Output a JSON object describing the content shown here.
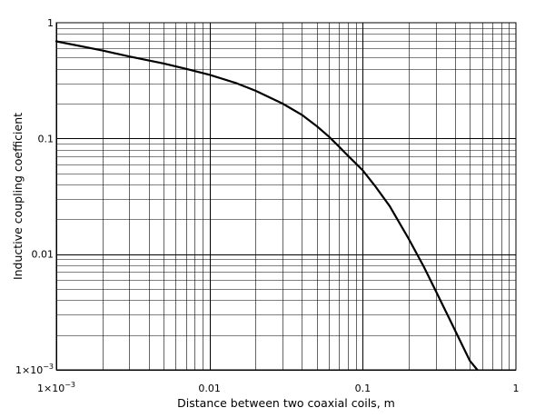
{
  "chart_data": {
    "type": "line",
    "title": "",
    "xlabel": "Distance between two coaxial coils, m",
    "ylabel": "Inductive coupling coefficient",
    "x_scale": "log",
    "y_scale": "log",
    "xlim": [
      0.001,
      1
    ],
    "ylim": [
      0.001,
      1
    ],
    "grid": true,
    "legend": "none",
    "colors": {
      "line": "#000000",
      "grid": "#000000",
      "background": "#ffffff"
    },
    "x_ticks": [
      {
        "value": 0.001,
        "base": "1×10",
        "exp": "−3"
      },
      {
        "value": 0.01,
        "base": "0.01",
        "exp": ""
      },
      {
        "value": 0.1,
        "base": "0.1",
        "exp": ""
      },
      {
        "value": 1,
        "base": "1",
        "exp": ""
      }
    ],
    "y_ticks": [
      {
        "value": 0.001,
        "base": "1×10",
        "exp": "−3"
      },
      {
        "value": 0.01,
        "base": "0.01",
        "exp": ""
      },
      {
        "value": 0.1,
        "base": "0.1",
        "exp": ""
      },
      {
        "value": 1,
        "base": "1",
        "exp": ""
      }
    ],
    "series": [
      {
        "x": [
          0.001,
          0.002,
          0.003,
          0.005,
          0.007,
          0.01,
          0.015,
          0.02,
          0.03,
          0.04,
          0.05,
          0.06,
          0.07,
          0.08,
          0.1,
          0.12,
          0.15,
          0.2,
          0.25,
          0.3,
          0.4,
          0.5,
          0.56
        ],
        "y": [
          0.69,
          0.575,
          0.51,
          0.445,
          0.4,
          0.355,
          0.3,
          0.258,
          0.2,
          0.16,
          0.128,
          0.104,
          0.085,
          0.071,
          0.053,
          0.039,
          0.026,
          0.0135,
          0.0078,
          0.0048,
          0.0022,
          0.0012,
          0.001
        ]
      }
    ]
  }
}
